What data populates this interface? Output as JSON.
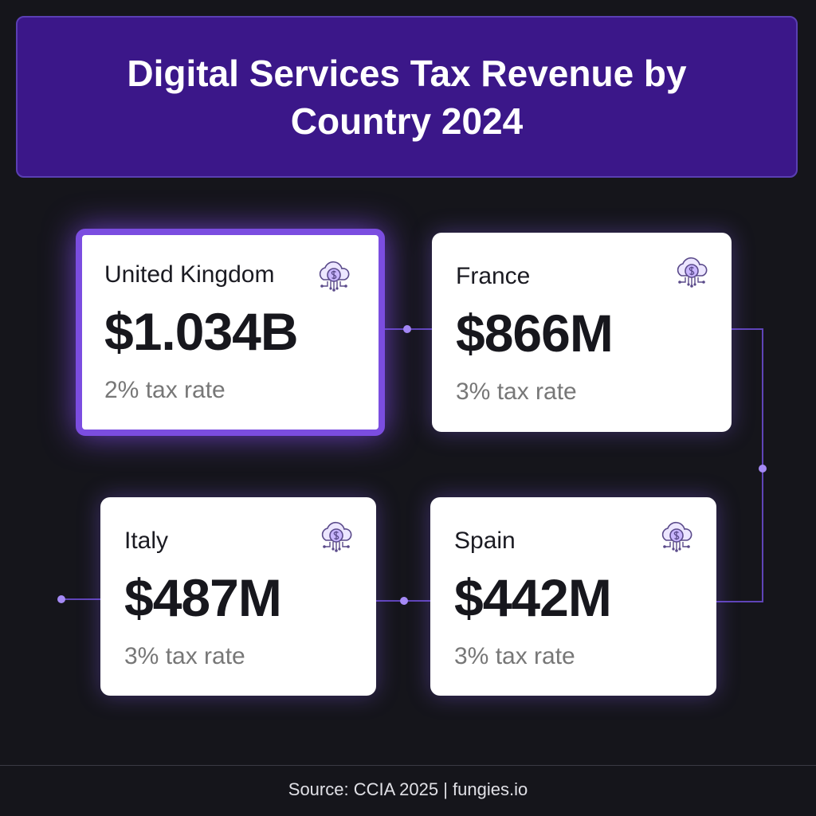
{
  "header": {
    "title": "Digital Services Tax Revenue by Country 2024"
  },
  "cards": [
    {
      "country": "United Kingdom",
      "revenue": "$1.034B",
      "rate": "2% tax rate"
    },
    {
      "country": "France",
      "revenue": "$866M",
      "rate": "3% tax rate"
    },
    {
      "country": "Italy",
      "revenue": "$487M",
      "rate": "3% tax rate"
    },
    {
      "country": "Spain",
      "revenue": "$442M",
      "rate": "3% tax rate"
    }
  ],
  "footer": {
    "source": "Source: CCIA 2025 | fungies.io"
  }
}
